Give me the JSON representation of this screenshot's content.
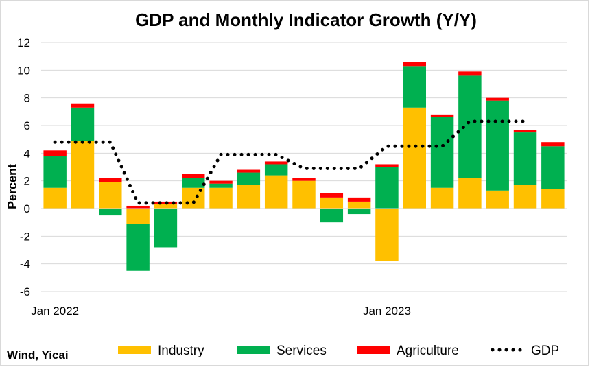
{
  "chart_data": {
    "type": "bar",
    "title": "GDP and Monthly Indicator Growth (Y/Y)",
    "ylabel": "Percent",
    "xlabel": "",
    "ylim": [
      -6,
      12
    ],
    "yticks": [
      -6,
      -4,
      -2,
      0,
      2,
      4,
      6,
      8,
      10,
      12
    ],
    "grid": true,
    "legend_position": "bottom",
    "x_tick_labels": [
      {
        "index": 0,
        "label": "Jan 2022"
      },
      {
        "index": 12,
        "label": "Jan 2023"
      }
    ],
    "categories": [
      "1",
      "2",
      "3",
      "4",
      "5",
      "6",
      "7",
      "8",
      "9",
      "10",
      "11",
      "12",
      "13",
      "14",
      "15",
      "16",
      "17",
      "18",
      "19"
    ],
    "series": [
      {
        "name": "Industry",
        "type": "bar",
        "color": "#FFC000",
        "values": [
          1.5,
          4.9,
          1.9,
          -1.1,
          0.3,
          1.5,
          1.5,
          1.7,
          2.4,
          2.0,
          0.8,
          0.5,
          -3.8,
          7.3,
          1.5,
          2.2,
          1.3,
          1.7,
          1.4
        ]
      },
      {
        "name": "Services",
        "type": "bar",
        "color": "#00B050",
        "values": [
          2.3,
          2.4,
          -0.5,
          -3.4,
          -2.8,
          0.7,
          0.3,
          0.9,
          0.8,
          0.0,
          -1.0,
          -0.4,
          3.0,
          3.0,
          5.1,
          7.4,
          6.5,
          3.8,
          3.1
        ]
      },
      {
        "name": "Agriculture",
        "type": "bar",
        "color": "#FF0000",
        "values": [
          0.4,
          0.3,
          0.3,
          0.2,
          0.2,
          0.3,
          0.2,
          0.2,
          0.2,
          0.2,
          0.3,
          0.3,
          0.2,
          0.3,
          0.2,
          0.3,
          0.2,
          0.2,
          0.3
        ]
      },
      {
        "name": "GDP",
        "type": "line",
        "color": "#000000",
        "values": [
          4.8,
          4.8,
          4.8,
          0.4,
          0.4,
          0.4,
          3.9,
          3.9,
          3.9,
          2.9,
          2.9,
          2.9,
          4.5,
          4.5,
          4.5,
          6.3,
          6.3,
          6.3,
          null
        ]
      }
    ]
  },
  "source": "Wind, Yicai",
  "icons": {
    "legend_line_style": "dotted-line-icon"
  }
}
